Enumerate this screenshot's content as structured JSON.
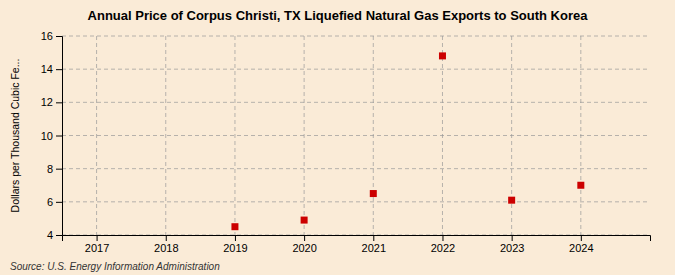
{
  "chart_data": {
    "type": "scatter",
    "title": "Annual Price of Corpus Christi, TX Liquefied Natural Gas Exports to South Korea",
    "y_label": "Dollars per Thousand Cubic Fe...",
    "source": "Source: U.S. Energy Information Administration",
    "x": [
      2019,
      2020,
      2021,
      2022,
      2023,
      2024
    ],
    "values": [
      4.5,
      4.9,
      6.5,
      14.8,
      6.1,
      7.0
    ],
    "xlim": [
      2016.5,
      2025.0
    ],
    "ylim": [
      4,
      16
    ],
    "xticks": [
      2017,
      2018,
      2019,
      2020,
      2021,
      2022,
      2023,
      2024
    ],
    "yticks": [
      4,
      6,
      8,
      10,
      12,
      14,
      16
    ],
    "grid": true,
    "marker": "square",
    "color": "#cc0000"
  }
}
